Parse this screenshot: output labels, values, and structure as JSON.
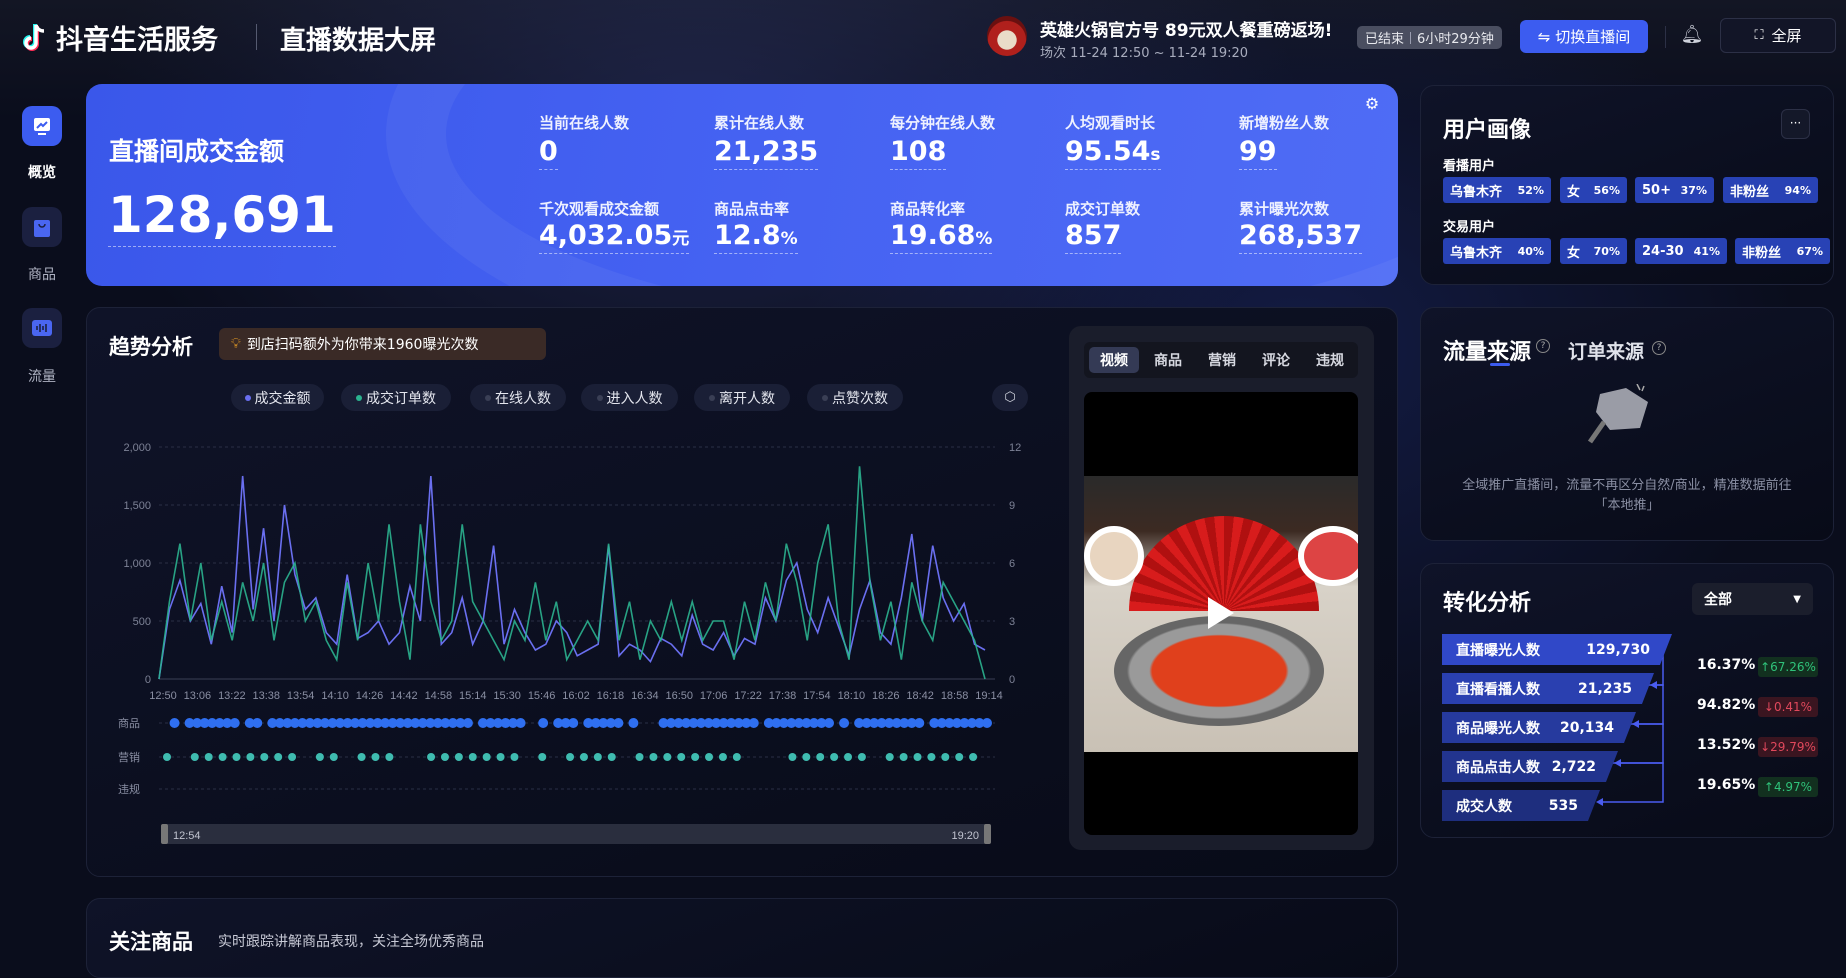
{
  "header": {
    "brand": "抖音生活服务",
    "title": "直播数据大屏",
    "live_title": "英雄火锅官方号 89元双人餐重磅返场!",
    "live_session": "场次 11-24 12:50 ~ 11-24 19:20",
    "status": "已结束",
    "duration": "6小时29分钟",
    "switch_label": "切换直播间",
    "fullscreen_label": "全屏"
  },
  "sidebar": {
    "items": [
      {
        "label": "概览",
        "icon": "chart-icon",
        "active": true
      },
      {
        "label": "商品",
        "icon": "shopping-bag-icon"
      },
      {
        "label": "流量",
        "icon": "bars-icon"
      }
    ]
  },
  "kpi": {
    "main_label": "直播间成交金额",
    "main_value": "128,691",
    "metrics": [
      {
        "label": "当前在线人数",
        "value": "0",
        "unit": ""
      },
      {
        "label": "累计在线人数",
        "value": "21,235",
        "unit": ""
      },
      {
        "label": "每分钟在线人数",
        "value": "108",
        "unit": ""
      },
      {
        "label": "人均观看时长",
        "value": "95.54",
        "unit": "s"
      },
      {
        "label": "新增粉丝人数",
        "value": "99",
        "unit": ""
      },
      {
        "label": "千次观看成交金额",
        "value": "4,032.05",
        "unit": "元"
      },
      {
        "label": "商品点击率",
        "value": "12.8",
        "unit": "%"
      },
      {
        "label": "商品转化率",
        "value": "19.68",
        "unit": "%"
      },
      {
        "label": "成交订单数",
        "value": "857",
        "unit": ""
      },
      {
        "label": "累计曝光次数",
        "value": "268,537",
        "unit": ""
      }
    ]
  },
  "portrait": {
    "title": "用户画像",
    "more": "···",
    "groups": [
      {
        "label": "看播用户",
        "tags": [
          {
            "name": "乌鲁木齐",
            "pct": "52%"
          },
          {
            "name": "女",
            "pct": "56%"
          },
          {
            "name": "50+",
            "pct": "37%"
          },
          {
            "name": "非粉丝",
            "pct": "94%"
          }
        ]
      },
      {
        "label": "交易用户",
        "tags": [
          {
            "name": "乌鲁木齐",
            "pct": "40%"
          },
          {
            "name": "女",
            "pct": "70%"
          },
          {
            "name": "24-30",
            "pct": "41%"
          },
          {
            "name": "非粉丝",
            "pct": "67%"
          }
        ]
      }
    ]
  },
  "traffic": {
    "tabs": [
      "流量来源",
      "订单来源"
    ],
    "empty_line1": "全域推广直播间，流量不再区分自然/商业，精准数据前往",
    "empty_line2": "「本地推」"
  },
  "conversion": {
    "title": "转化分析",
    "select": "全部",
    "steps": [
      {
        "label": "直播曝光人数",
        "value": "129,730"
      },
      {
        "label": "直播看播人数",
        "value": "21,235"
      },
      {
        "label": "商品曝光人数",
        "value": "20,134"
      },
      {
        "label": "商品点击人数",
        "value": "2,722"
      },
      {
        "label": "成交人数",
        "value": "535"
      }
    ],
    "rates": [
      {
        "rate": "16.37%",
        "change": "↑67.26%",
        "dir": "up"
      },
      {
        "rate": "94.82%",
        "change": "↓0.41%",
        "dir": "down"
      },
      {
        "rate": "13.52%",
        "change": "↓29.79%",
        "dir": "down"
      },
      {
        "rate": "19.65%",
        "change": "↑4.97%",
        "dir": "up"
      }
    ]
  },
  "trend": {
    "title": "趋势分析",
    "tip": "到店扫码额外为你带来1960曝光次数",
    "legend": [
      {
        "label": "成交金额",
        "color": "#6a6ff0"
      },
      {
        "label": "成交订单数",
        "color": "#2bb38f"
      },
      {
        "label": "在线人数",
        "color": "#3a3f55"
      },
      {
        "label": "进入人数",
        "color": "#3a3f55"
      },
      {
        "label": "离开人数",
        "color": "#3a3f55"
      },
      {
        "label": "点赞次数",
        "color": "#3a3f55"
      }
    ],
    "event_rows": [
      "商品",
      "营销",
      "违规"
    ],
    "range_start": "12:54",
    "range_end": "19:20"
  },
  "video": {
    "tabs": [
      "视频",
      "商品",
      "营销",
      "评论",
      "违规"
    ]
  },
  "focus": {
    "title": "关注商品",
    "subtitle": "实时跟踪讲解商品表现，关注全场优秀商品"
  },
  "colors": {
    "accent": "#3c5cf0",
    "amount_line": "#6a6ff0",
    "orders_line": "#2bb38f",
    "up": "#2fc27a",
    "down": "#e0485c"
  },
  "chart_data": {
    "type": "line",
    "x_ticks": [
      "12:50",
      "13:06",
      "13:22",
      "13:38",
      "13:54",
      "14:10",
      "14:26",
      "14:42",
      "14:58",
      "15:14",
      "15:30",
      "15:46",
      "16:02",
      "16:18",
      "16:34",
      "16:50",
      "17:06",
      "17:22",
      "17:38",
      "17:54",
      "18:10",
      "18:26",
      "18:42",
      "18:58",
      "19:14"
    ],
    "y_left_ticks": [
      "0",
      "500",
      "1,000",
      "1,500",
      "2,000"
    ],
    "y_left_range": [
      0,
      2000
    ],
    "y_right_ticks": [
      "0",
      "3",
      "6",
      "9",
      "12"
    ],
    "y_right_range": [
      0,
      12
    ],
    "grid": true,
    "series": [
      {
        "name": "成交金额",
        "axis": "left",
        "values": [
          0,
          600,
          850,
          500,
          650,
          300,
          800,
          400,
          1750,
          600,
          1300,
          500,
          1500,
          900,
          600,
          700,
          400,
          300,
          900,
          350,
          400,
          500,
          300,
          400,
          800,
          500,
          1750,
          300,
          400,
          700,
          300,
          500,
          1150,
          300,
          600,
          400,
          250,
          300,
          500,
          400,
          200,
          250,
          300,
          1150,
          200,
          300,
          250,
          150,
          350,
          300,
          200,
          550,
          300,
          250,
          400,
          200,
          350,
          300,
          700,
          500,
          850,
          1000,
          600,
          400,
          700,
          450,
          200,
          600,
          850,
          400,
          300,
          700,
          1250,
          500,
          1150,
          700,
          500,
          650,
          300,
          250
        ]
      },
      {
        "name": "成交订单数",
        "axis": "right",
        "values": [
          0,
          4,
          7,
          3,
          6,
          2,
          4,
          2,
          5,
          3,
          6,
          2,
          5,
          6,
          3,
          4,
          2,
          1,
          5,
          2,
          6,
          3,
          8,
          4,
          1,
          8,
          4,
          2,
          3,
          8,
          4,
          3,
          2,
          1,
          3,
          2,
          5,
          2,
          4,
          1,
          2,
          3,
          2,
          7,
          2,
          4,
          1,
          3,
          2,
          4,
          2,
          4,
          2,
          3,
          3,
          1,
          4,
          2,
          5,
          3,
          7,
          5,
          2,
          6,
          8,
          3,
          1,
          11,
          5,
          2,
          4,
          1,
          5,
          3,
          2,
          5,
          4,
          3,
          2,
          0
        ]
      }
    ]
  }
}
